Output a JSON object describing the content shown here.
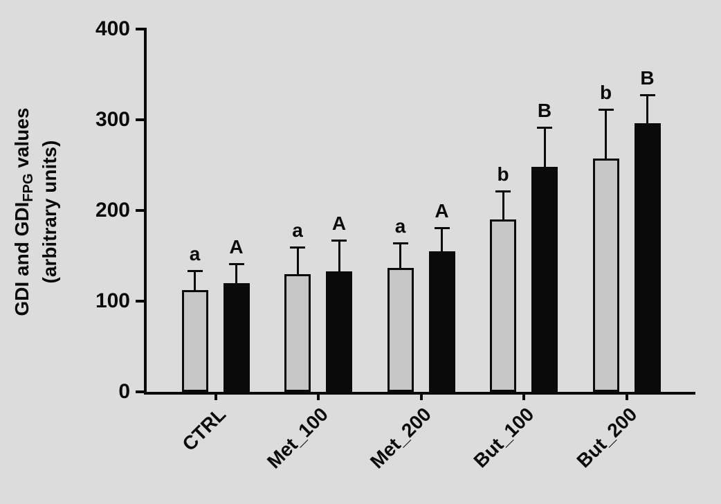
{
  "page": {
    "background": "#dcdcdc",
    "axis_color": "#0a0a0a",
    "text_color": "#0a0a0a"
  },
  "chart_data": {
    "type": "bar",
    "title": "",
    "categories": [
      "CTRL",
      "Met_100",
      "Met_200",
      "But_100",
      "But_200"
    ],
    "series": [
      {
        "name": "GDI",
        "color": "#c6c6c6",
        "values": [
          112,
          130,
          137,
          190,
          257
        ],
        "errors": [
          22,
          30,
          28,
          32,
          55
        ],
        "significance_letters": [
          "a",
          "a",
          "a",
          "b",
          "b"
        ]
      },
      {
        "name": "GDI_FPG",
        "color": "#0a0a0a",
        "values": [
          120,
          133,
          155,
          248,
          296
        ],
        "errors": [
          22,
          35,
          27,
          44,
          32
        ],
        "significance_letters": [
          "A",
          "A",
          "A",
          "B",
          "B"
        ]
      }
    ],
    "ylabel_line1": {
      "pre": "GDI and GDI",
      "sub": "FPG",
      "post": " values"
    },
    "ylabel_line2": "(arbitrary units)",
    "xlabel": "",
    "ylim": [
      0,
      400
    ],
    "yticks": [
      0,
      100,
      200,
      300,
      400
    ],
    "grid": false,
    "legend": "none",
    "error_bars": "upper-sd-with-cap",
    "bar_outline": "#0a0a0a"
  }
}
